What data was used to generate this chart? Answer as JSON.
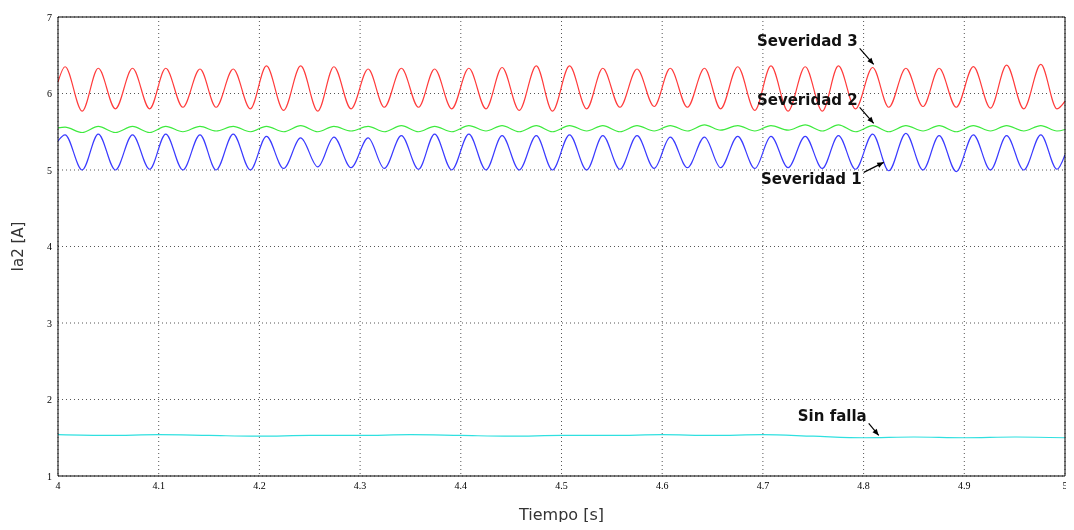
{
  "chart_data": {
    "type": "line",
    "xlabel": "Tiempo [s]",
    "ylabel": "Ia2 [A]",
    "xlim": [
      4,
      5
    ],
    "xticks": [
      4,
      4.1,
      4.2,
      4.3,
      4.4,
      4.5,
      4.6,
      4.7,
      4.8,
      4.9,
      5
    ],
    "ylim": [
      1,
      7
    ],
    "yticks": [
      1,
      2,
      3,
      4,
      5,
      6,
      7
    ],
    "grid": true,
    "legend": false,
    "marker": "none",
    "line_style": "solid",
    "series": [
      {
        "color": "#ff3b3b",
        "x": [
          4,
          4.007,
          4.024,
          4.04,
          4.057,
          4.074,
          4.091,
          4.107,
          4.124,
          4.141,
          4.157,
          4.174,
          4.191,
          4.207,
          4.224,
          4.241,
          4.258,
          4.274,
          4.291,
          4.308,
          4.324,
          4.341,
          4.358,
          4.374,
          4.391,
          4.408,
          4.425,
          4.441,
          4.458,
          4.475,
          4.491,
          4.508,
          4.525,
          4.541,
          4.558,
          4.575,
          4.592,
          4.608,
          4.625,
          4.642,
          4.658,
          4.675,
          4.692,
          4.708,
          4.725,
          4.742,
          4.759,
          4.775,
          4.792,
          4.809,
          4.825,
          4.842,
          4.859,
          4.875,
          4.892,
          4.909,
          4.926,
          4.942,
          4.959,
          4.976,
          4.992,
          5
        ],
        "values": [
          6.15,
          6.35,
          5.77,
          6.33,
          5.8,
          6.33,
          5.8,
          6.33,
          5.82,
          6.32,
          5.82,
          6.32,
          5.8,
          6.36,
          5.78,
          6.36,
          5.77,
          6.35,
          5.8,
          6.32,
          5.82,
          6.33,
          5.82,
          6.32,
          5.8,
          6.33,
          5.8,
          6.34,
          5.78,
          6.36,
          5.77,
          6.36,
          5.8,
          6.33,
          5.82,
          6.32,
          5.83,
          6.33,
          5.82,
          6.33,
          5.8,
          6.35,
          5.78,
          6.36,
          5.77,
          6.35,
          5.77,
          6.36,
          5.8,
          6.34,
          5.82,
          6.33,
          5.83,
          6.33,
          5.82,
          6.35,
          5.81,
          6.37,
          5.8,
          6.38,
          5.8,
          5.9
        ]
      },
      {
        "color": "#3dea3d",
        "x": [
          4,
          4.007,
          4.024,
          4.04,
          4.057,
          4.074,
          4.091,
          4.107,
          4.124,
          4.141,
          4.157,
          4.174,
          4.191,
          4.207,
          4.224,
          4.241,
          4.258,
          4.274,
          4.291,
          4.308,
          4.324,
          4.341,
          4.358,
          4.374,
          4.391,
          4.408,
          4.425,
          4.441,
          4.458,
          4.475,
          4.491,
          4.508,
          4.525,
          4.541,
          4.558,
          4.575,
          4.592,
          4.608,
          4.625,
          4.642,
          4.658,
          4.675,
          4.692,
          4.708,
          4.725,
          4.742,
          4.759,
          4.775,
          4.792,
          4.809,
          4.825,
          4.842,
          4.859,
          4.875,
          4.892,
          4.909,
          4.926,
          4.942,
          4.959,
          4.976,
          4.992,
          5
        ],
        "values": [
          5.55,
          5.56,
          5.49,
          5.57,
          5.49,
          5.57,
          5.49,
          5.57,
          5.5,
          5.57,
          5.51,
          5.57,
          5.5,
          5.57,
          5.5,
          5.58,
          5.5,
          5.57,
          5.51,
          5.57,
          5.5,
          5.58,
          5.5,
          5.57,
          5.5,
          5.58,
          5.51,
          5.58,
          5.5,
          5.58,
          5.5,
          5.58,
          5.51,
          5.58,
          5.5,
          5.58,
          5.51,
          5.58,
          5.51,
          5.59,
          5.52,
          5.58,
          5.51,
          5.58,
          5.52,
          5.59,
          5.51,
          5.59,
          5.5,
          5.58,
          5.5,
          5.58,
          5.51,
          5.58,
          5.5,
          5.58,
          5.51,
          5.58,
          5.51,
          5.58,
          5.51,
          5.53
        ]
      },
      {
        "color": "#3a3aff",
        "x": [
          4,
          4.007,
          4.024,
          4.04,
          4.057,
          4.074,
          4.091,
          4.107,
          4.124,
          4.141,
          4.157,
          4.174,
          4.191,
          4.207,
          4.224,
          4.241,
          4.258,
          4.274,
          4.291,
          4.308,
          4.324,
          4.341,
          4.358,
          4.374,
          4.391,
          4.408,
          4.425,
          4.441,
          4.458,
          4.475,
          4.491,
          4.508,
          4.525,
          4.541,
          4.558,
          4.575,
          4.592,
          4.608,
          4.625,
          4.642,
          4.658,
          4.675,
          4.692,
          4.708,
          4.725,
          4.742,
          4.759,
          4.775,
          4.792,
          4.809,
          4.825,
          4.842,
          4.859,
          4.875,
          4.892,
          4.909,
          4.926,
          4.942,
          4.959,
          4.976,
          4.992,
          5
        ],
        "values": [
          5.38,
          5.46,
          5.0,
          5.47,
          5.0,
          5.46,
          5.01,
          5.47,
          5.0,
          5.46,
          5.0,
          5.47,
          5.0,
          5.44,
          5.02,
          5.42,
          5.04,
          5.43,
          5.03,
          5.42,
          5.02,
          5.45,
          5.01,
          5.47,
          5.0,
          5.47,
          5.0,
          5.45,
          5.0,
          5.45,
          5.0,
          5.46,
          5.0,
          5.45,
          5.01,
          5.45,
          5.02,
          5.43,
          5.03,
          5.43,
          5.03,
          5.44,
          5.02,
          5.44,
          5.03,
          5.44,
          5.02,
          5.45,
          5.01,
          5.47,
          4.99,
          5.48,
          5.0,
          5.45,
          4.98,
          5.46,
          5.0,
          5.45,
          5.0,
          5.46,
          5.01,
          5.2
        ]
      },
      {
        "color": "#2fe0e0",
        "x": [
          4,
          4.05,
          4.1,
          4.15,
          4.2,
          4.25,
          4.3,
          4.35,
          4.4,
          4.45,
          4.5,
          4.55,
          4.6,
          4.65,
          4.7,
          4.75,
          4.8,
          4.85,
          4.9,
          4.95,
          5
        ],
        "values": [
          1.54,
          1.53,
          1.54,
          1.53,
          1.52,
          1.53,
          1.53,
          1.54,
          1.53,
          1.52,
          1.53,
          1.53,
          1.54,
          1.53,
          1.54,
          1.52,
          1.5,
          1.51,
          1.5,
          1.51,
          1.5
        ]
      }
    ],
    "annotations": [
      {
        "text": "Severidad 3",
        "x": 4.81,
        "y": 6.38
      },
      {
        "text": "Severidad 2",
        "x": 4.81,
        "y": 5.61
      },
      {
        "text": "Severidad 1",
        "x": 4.82,
        "y": 5.1
      },
      {
        "text": "Sin falla",
        "x": 4.815,
        "y": 1.53
      }
    ]
  }
}
